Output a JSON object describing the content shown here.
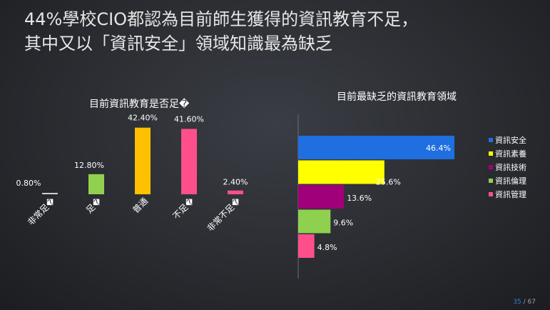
{
  "headline": {
    "line1": "44%學校CIO都認為目前師生獲得的資訊教育不足，",
    "line2": "其中又以「資訊安全」領域知識最為缺乏"
  },
  "chart_data": [
    {
      "type": "bar",
      "title": "目前資訊教育是否足�",
      "categories": [
        "非常足�",
        "足�",
        "普通",
        "不足�",
        "非常不足�"
      ],
      "values": [
        0.8,
        12.8,
        42.4,
        41.6,
        2.4
      ],
      "value_labels": [
        "0.80%",
        "12.80%",
        "42.40%",
        "41.60%",
        "2.40%"
      ],
      "colors": [
        "#cfcfcf",
        "#8fd14f",
        "#ffc000",
        "#ff4f8b",
        "#ff4f8b"
      ],
      "ylim": [
        0,
        50
      ],
      "grid": false,
      "legend": "none"
    },
    {
      "type": "bar",
      "orientation": "horizontal",
      "title": "目前最缺乏的資訊教育領域",
      "categories": [
        "資訊安全",
        "資訊素養",
        "資訊技術",
        "資訊倫理",
        "資訊管理"
      ],
      "values": [
        46.4,
        25.6,
        13.6,
        9.6,
        4.8
      ],
      "value_labels": [
        "46.4%",
        "25.6%",
        "13.6%",
        "9.6%",
        "4.8%"
      ],
      "colors": [
        "#1f6fe0",
        "#ffff00",
        "#a0007a",
        "#8fd14f",
        "#ff4f8b"
      ],
      "xlim": [
        0,
        50
      ],
      "grid": false,
      "legend": "right"
    }
  ],
  "page_number": {
    "current": "35",
    "sep": " / ",
    "total": "67"
  }
}
